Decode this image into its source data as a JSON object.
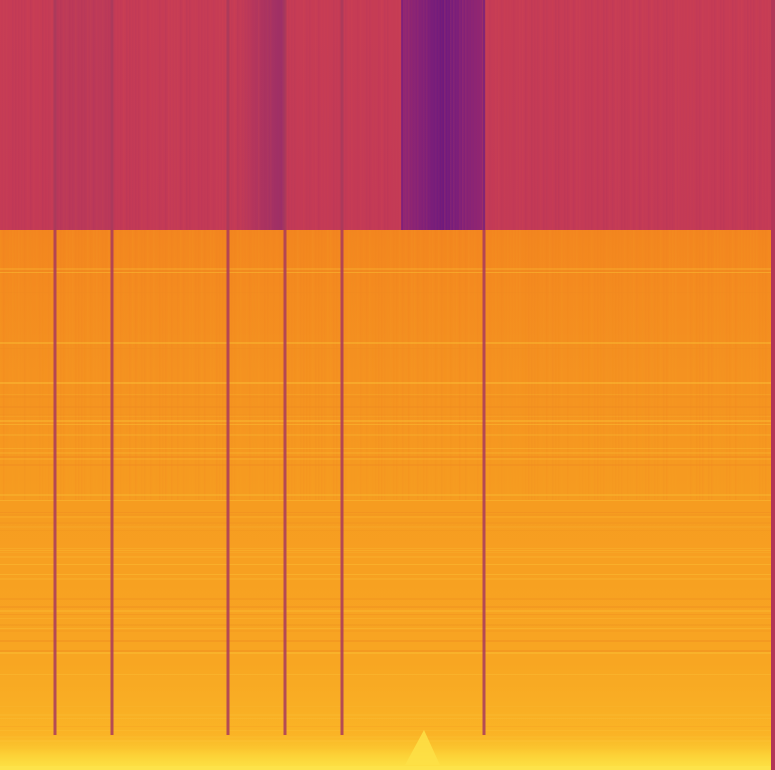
{
  "image": {
    "subject": "spectrogram",
    "colormap": "inferno",
    "palette": {
      "upper_band": "#c93f52",
      "upper_band_dark": "#7a1f7c",
      "lower_band": "#f4891f",
      "lower_band_bright": "#fbb224",
      "bottom_glow": "#fdd32f",
      "column_line": "#a83a5c"
    },
    "column_count": 9
  }
}
